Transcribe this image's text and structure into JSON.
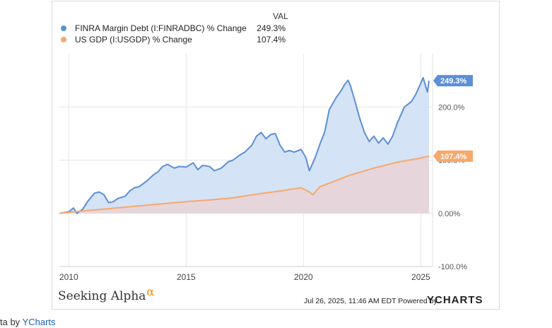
{
  "legend": {
    "header": "VAL",
    "items": [
      {
        "name": "FINRA Margin Debt (I:FINRADBC) % Change",
        "value": "249.3%",
        "color": "#5b8fd6"
      },
      {
        "name": "US GDP (I:USGDP) % Change",
        "value": "107.4%",
        "color": "#f7a86b"
      }
    ]
  },
  "footer": {
    "brand": "Seeking Alpha",
    "brand_mark": "α",
    "timestamp": "Jul 26, 2025, 11:46 AM EDT Powered by",
    "logo": "YCHARTS"
  },
  "credit": {
    "prefix": "ta by",
    "link": "YCharts"
  },
  "chart_data": {
    "type": "area",
    "x_ticks": [
      "2010",
      "2015",
      "2020",
      "2025"
    ],
    "y_ticks": [
      "200.0%",
      "100.0%",
      "0.00%",
      "-100.0%"
    ],
    "y_tick_values": [
      200,
      100,
      0,
      -100
    ],
    "xlim": [
      2009.6,
      2025.5
    ],
    "ylim": [
      -100,
      300
    ],
    "grid": true,
    "legend_position": "top-left",
    "end_labels": [
      "249.3%",
      "107.4%"
    ],
    "series": [
      {
        "name": "FINRA Margin Debt (I:FINRADBC) % Change",
        "color": "#5b8fd6",
        "fill": "#d3e2f6",
        "points": [
          [
            2009.6,
            0
          ],
          [
            2010.0,
            3
          ],
          [
            2010.2,
            10
          ],
          [
            2010.35,
            0
          ],
          [
            2010.6,
            8
          ],
          [
            2010.8,
            22
          ],
          [
            2011.1,
            38
          ],
          [
            2011.3,
            40
          ],
          [
            2011.5,
            35
          ],
          [
            2011.7,
            20
          ],
          [
            2011.9,
            22
          ],
          [
            2012.1,
            28
          ],
          [
            2012.4,
            32
          ],
          [
            2012.6,
            42
          ],
          [
            2012.8,
            48
          ],
          [
            2013.0,
            50
          ],
          [
            2013.3,
            60
          ],
          [
            2013.6,
            72
          ],
          [
            2013.8,
            78
          ],
          [
            2014.0,
            88
          ],
          [
            2014.2,
            92
          ],
          [
            2014.5,
            85
          ],
          [
            2014.7,
            88
          ],
          [
            2015.0,
            87
          ],
          [
            2015.3,
            95
          ],
          [
            2015.5,
            82
          ],
          [
            2015.7,
            90
          ],
          [
            2016.0,
            88
          ],
          [
            2016.2,
            80
          ],
          [
            2016.5,
            85
          ],
          [
            2016.8,
            97
          ],
          [
            2017.0,
            100
          ],
          [
            2017.3,
            110
          ],
          [
            2017.5,
            115
          ],
          [
            2017.8,
            128
          ],
          [
            2018.0,
            145
          ],
          [
            2018.2,
            152
          ],
          [
            2018.4,
            140
          ],
          [
            2018.6,
            148
          ],
          [
            2018.8,
            150
          ],
          [
            2019.0,
            128
          ],
          [
            2019.2,
            115
          ],
          [
            2019.4,
            118
          ],
          [
            2019.6,
            115
          ],
          [
            2019.9,
            120
          ],
          [
            2020.1,
            105
          ],
          [
            2020.25,
            80
          ],
          [
            2020.5,
            105
          ],
          [
            2020.7,
            130
          ],
          [
            2020.9,
            152
          ],
          [
            2021.1,
            195
          ],
          [
            2021.4,
            218
          ],
          [
            2021.6,
            230
          ],
          [
            2021.75,
            242
          ],
          [
            2021.9,
            250
          ],
          [
            2022.0,
            240
          ],
          [
            2022.2,
            210
          ],
          [
            2022.4,
            178
          ],
          [
            2022.6,
            152
          ],
          [
            2022.8,
            135
          ],
          [
            2023.0,
            145
          ],
          [
            2023.2,
            132
          ],
          [
            2023.4,
            142
          ],
          [
            2023.6,
            130
          ],
          [
            2023.8,
            145
          ],
          [
            2024.0,
            170
          ],
          [
            2024.3,
            200
          ],
          [
            2024.6,
            210
          ],
          [
            2024.8,
            225
          ],
          [
            2025.0,
            245
          ],
          [
            2025.1,
            255
          ],
          [
            2025.2,
            240
          ],
          [
            2025.28,
            228
          ],
          [
            2025.35,
            249.3
          ]
        ]
      },
      {
        "name": "US GDP (I:USGDP) % Change",
        "color": "#f7a86b",
        "fill": "#e9d3d6",
        "points": [
          [
            2009.6,
            0
          ],
          [
            2010.0,
            2
          ],
          [
            2011.0,
            6
          ],
          [
            2012.0,
            10
          ],
          [
            2013.0,
            14
          ],
          [
            2014.0,
            18
          ],
          [
            2015.0,
            22
          ],
          [
            2016.0,
            25
          ],
          [
            2017.0,
            29
          ],
          [
            2018.0,
            36
          ],
          [
            2019.0,
            42
          ],
          [
            2019.9,
            48
          ],
          [
            2020.25,
            40
          ],
          [
            2020.4,
            35
          ],
          [
            2020.7,
            50
          ],
          [
            2021.0,
            55
          ],
          [
            2022.0,
            72
          ],
          [
            2023.0,
            85
          ],
          [
            2024.0,
            96
          ],
          [
            2025.0,
            104
          ],
          [
            2025.35,
            107.4
          ]
        ]
      }
    ]
  }
}
